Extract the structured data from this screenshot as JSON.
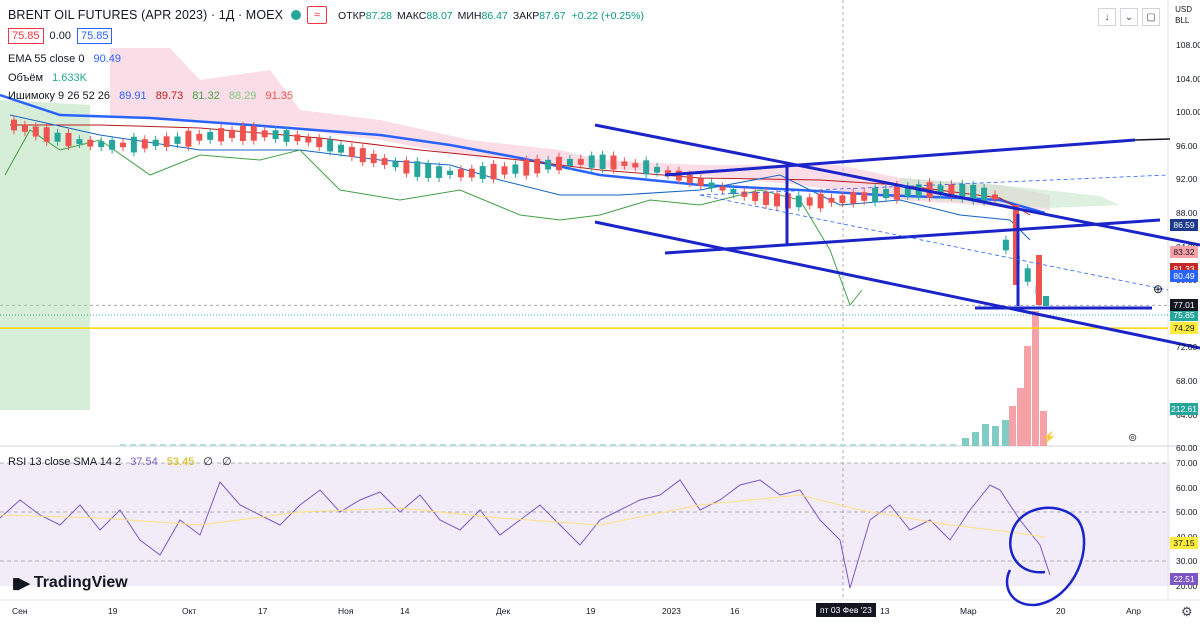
{
  "header": {
    "title": "BRENT OIL FUTURES (APR 2023) · 1Д · MOEX",
    "ohlc": [
      {
        "k": "ОТКР",
        "v": "87.28"
      },
      {
        "k": "МАКС",
        "v": "88.07"
      },
      {
        "k": "МИН",
        "v": "86.47"
      },
      {
        "k": "ЗАКР",
        "v": "87.67"
      },
      {
        "k": "",
        "v": "+0.22 (+0.25%)"
      }
    ],
    "wave_btn": "≈",
    "sell_price": "75.85",
    "spread": "0.00",
    "buy_price": "75.85"
  },
  "legends": {
    "ema_label": "EMA 55 close 0",
    "ema_value": "90.49",
    "volume_label": "Объём",
    "volume_value": "1.633K",
    "ichimoku_label": "Ишимоку 9 26 52 26",
    "ichimoku_values": [
      "89.91",
      "89.73",
      "81.32",
      "88.29",
      "91.35"
    ],
    "rsi_label": "RSI 13 close SMA 14 2",
    "rsi_values": [
      "37.54",
      "53.45",
      "∅",
      "∅"
    ]
  },
  "topright_icons": [
    "arrow-down-icon",
    "dropdown-icon",
    "expand-icon"
  ],
  "currency": [
    "USD",
    "BLL"
  ],
  "price_axis": [
    "108.00",
    "104.00",
    "100.00",
    "96.00",
    "92.00",
    "88.00",
    "84.00",
    "80.00",
    "76.00",
    "72.00",
    "68.00",
    "64.00",
    "60.00"
  ],
  "price_labels": [
    {
      "text": "86.59",
      "color": "#1e3a8a",
      "price": 86.59
    },
    {
      "text": "83.32",
      "color": "#f7a1a8",
      "price": 83.32
    },
    {
      "text": "81.33",
      "color": "#c62828",
      "price": 81.33
    },
    {
      "text": "80.49",
      "color": "#2962ff",
      "price": 80.49
    },
    {
      "text": "75.85",
      "color": "#26a69a",
      "price": 75.85
    },
    {
      "text": "77.01",
      "color": "#131722",
      "price": 77.01
    },
    {
      "text": "74.29",
      "color": "#ffeb3b",
      "price": 74.29
    },
    {
      "text": "212.61",
      "color": "#26a69a",
      "price": 0
    }
  ],
  "rsi_axis": [
    "70.00",
    "60.00",
    "50.00",
    "40.00",
    "30.00",
    "20.00"
  ],
  "rsi_labels": [
    {
      "text": "37.15",
      "color": "#ffeb3b"
    },
    {
      "text": "22.51",
      "color": "#7e57c2"
    }
  ],
  "time_axis": [
    "Сен",
    "19",
    "Окт",
    "17",
    "Ноя",
    "14",
    "Дек",
    "19",
    "2023",
    "16",
    "13",
    "Мар",
    "20",
    "Апр"
  ],
  "crosshair_date": "пт 03 Фев '23",
  "brand": "TradingView",
  "brand_icon": "tradingview-logo-icon"
}
